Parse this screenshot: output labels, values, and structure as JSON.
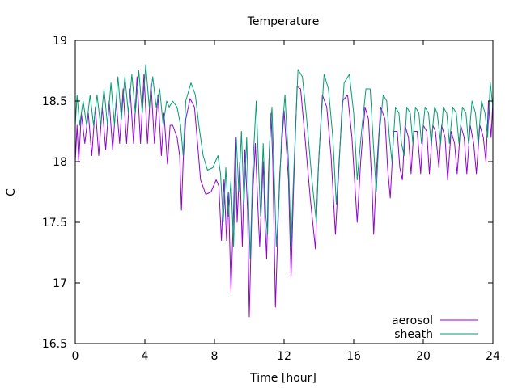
{
  "chart_data": {
    "type": "line",
    "title": "Temperature",
    "xlabel": "Time [hour]",
    "ylabel": "C",
    "xlim": [
      0,
      24
    ],
    "ylim": [
      16.5,
      19
    ],
    "xticks": [
      0,
      4,
      8,
      12,
      16,
      20,
      24
    ],
    "yticks": [
      16.5,
      17,
      17.5,
      18,
      18.5,
      19
    ],
    "grid": false,
    "legend_position": "bottom-right",
    "colors": {
      "aerosol": "#9400d3",
      "sheath": "#009e73"
    },
    "series": [
      {
        "name": "aerosol",
        "points": [
          [
            0.0,
            18.0
          ],
          [
            0.1,
            18.3
          ],
          [
            0.2,
            18.0
          ],
          [
            0.35,
            18.4
          ],
          [
            0.55,
            18.15
          ],
          [
            0.75,
            18.4
          ],
          [
            0.95,
            18.05
          ],
          [
            1.15,
            18.45
          ],
          [
            1.35,
            18.05
          ],
          [
            1.55,
            18.45
          ],
          [
            1.75,
            18.1
          ],
          [
            1.95,
            18.5
          ],
          [
            2.15,
            18.1
          ],
          [
            2.35,
            18.5
          ],
          [
            2.55,
            18.15
          ],
          [
            2.75,
            18.6
          ],
          [
            2.95,
            18.15
          ],
          [
            3.15,
            18.6
          ],
          [
            3.35,
            18.15
          ],
          [
            3.55,
            18.7
          ],
          [
            3.75,
            18.15
          ],
          [
            3.95,
            18.72
          ],
          [
            4.15,
            18.15
          ],
          [
            4.35,
            18.65
          ],
          [
            4.55,
            18.15
          ],
          [
            4.75,
            18.55
          ],
          [
            4.95,
            18.05
          ],
          [
            5.1,
            18.4
          ],
          [
            5.3,
            17.98
          ],
          [
            5.45,
            18.3
          ],
          [
            5.6,
            18.3
          ],
          [
            5.85,
            18.2
          ],
          [
            6.0,
            18.05
          ],
          [
            6.1,
            17.6
          ],
          [
            6.2,
            18.0
          ],
          [
            6.35,
            18.35
          ],
          [
            6.6,
            18.52
          ],
          [
            6.85,
            18.45
          ],
          [
            7.0,
            18.2
          ],
          [
            7.2,
            17.85
          ],
          [
            7.5,
            17.73
          ],
          [
            7.8,
            17.75
          ],
          [
            8.1,
            17.85
          ],
          [
            8.25,
            17.8
          ],
          [
            8.4,
            17.35
          ],
          [
            8.55,
            17.85
          ],
          [
            8.7,
            17.35
          ],
          [
            8.8,
            17.75
          ],
          [
            8.95,
            16.93
          ],
          [
            9.1,
            17.6
          ],
          [
            9.2,
            18.2
          ],
          [
            9.3,
            17.5
          ],
          [
            9.45,
            18.0
          ],
          [
            9.6,
            17.3
          ],
          [
            9.75,
            18.1
          ],
          [
            9.9,
            17.6
          ],
          [
            10.0,
            16.72
          ],
          [
            10.15,
            17.6
          ],
          [
            10.35,
            18.15
          ],
          [
            10.5,
            17.6
          ],
          [
            10.6,
            17.3
          ],
          [
            10.8,
            18.0
          ],
          [
            10.9,
            17.5
          ],
          [
            11.0,
            17.2
          ],
          [
            11.1,
            17.9
          ],
          [
            11.25,
            18.4
          ],
          [
            11.35,
            18.0
          ],
          [
            11.5,
            16.8
          ],
          [
            11.6,
            17.25
          ],
          [
            11.75,
            17.9
          ],
          [
            12.0,
            18.42
          ],
          [
            12.25,
            17.85
          ],
          [
            12.4,
            17.05
          ],
          [
            12.55,
            17.8
          ],
          [
            12.75,
            18.62
          ],
          [
            12.95,
            18.6
          ],
          [
            13.2,
            18.2
          ],
          [
            13.5,
            17.7
          ],
          [
            13.8,
            17.28
          ],
          [
            13.95,
            17.9
          ],
          [
            14.2,
            18.55
          ],
          [
            14.45,
            18.45
          ],
          [
            14.7,
            18.05
          ],
          [
            14.95,
            17.4
          ],
          [
            15.1,
            17.8
          ],
          [
            15.35,
            18.5
          ],
          [
            15.65,
            18.55
          ],
          [
            15.9,
            18.2
          ],
          [
            16.2,
            17.5
          ],
          [
            16.4,
            18.0
          ],
          [
            16.65,
            18.45
          ],
          [
            16.85,
            18.35
          ],
          [
            17.05,
            17.8
          ],
          [
            17.15,
            17.4
          ],
          [
            17.3,
            17.9
          ],
          [
            17.55,
            18.45
          ],
          [
            17.8,
            18.35
          ],
          [
            17.95,
            17.95
          ],
          [
            18.1,
            17.7
          ],
          [
            18.3,
            18.25
          ],
          [
            18.5,
            18.25
          ],
          [
            18.65,
            17.95
          ],
          [
            18.8,
            17.85
          ],
          [
            18.95,
            18.3
          ],
          [
            19.15,
            18.2
          ],
          [
            19.3,
            17.9
          ],
          [
            19.45,
            18.25
          ],
          [
            19.65,
            18.25
          ],
          [
            19.85,
            17.9
          ],
          [
            20.0,
            18.3
          ],
          [
            20.2,
            18.25
          ],
          [
            20.35,
            17.9
          ],
          [
            20.55,
            18.3
          ],
          [
            20.7,
            18.25
          ],
          [
            20.9,
            17.95
          ],
          [
            21.05,
            18.3
          ],
          [
            21.25,
            18.2
          ],
          [
            21.4,
            17.85
          ],
          [
            21.6,
            18.25
          ],
          [
            21.8,
            18.15
          ],
          [
            21.95,
            17.9
          ],
          [
            22.15,
            18.3
          ],
          [
            22.35,
            18.2
          ],
          [
            22.5,
            17.9
          ],
          [
            22.7,
            18.3
          ],
          [
            22.9,
            18.15
          ],
          [
            23.05,
            17.9
          ],
          [
            23.25,
            18.3
          ],
          [
            23.45,
            18.2
          ],
          [
            23.6,
            18.0
          ],
          [
            23.75,
            18.5
          ],
          [
            23.9,
            18.2
          ],
          [
            24.0,
            18.5
          ]
        ]
      },
      {
        "name": "sheath",
        "points": [
          [
            0.0,
            18.3
          ],
          [
            0.1,
            18.55
          ],
          [
            0.25,
            18.3
          ],
          [
            0.45,
            18.5
          ],
          [
            0.65,
            18.3
          ],
          [
            0.85,
            18.55
          ],
          [
            1.05,
            18.3
          ],
          [
            1.25,
            18.55
          ],
          [
            1.45,
            18.3
          ],
          [
            1.65,
            18.6
          ],
          [
            1.85,
            18.3
          ],
          [
            2.05,
            18.65
          ],
          [
            2.25,
            18.3
          ],
          [
            2.45,
            18.7
          ],
          [
            2.65,
            18.35
          ],
          [
            2.85,
            18.7
          ],
          [
            3.05,
            18.4
          ],
          [
            3.25,
            18.72
          ],
          [
            3.45,
            18.4
          ],
          [
            3.65,
            18.75
          ],
          [
            3.85,
            18.4
          ],
          [
            4.05,
            18.8
          ],
          [
            4.25,
            18.45
          ],
          [
            4.45,
            18.7
          ],
          [
            4.65,
            18.45
          ],
          [
            4.85,
            18.6
          ],
          [
            5.05,
            18.3
          ],
          [
            5.25,
            18.5
          ],
          [
            5.4,
            18.45
          ],
          [
            5.6,
            18.5
          ],
          [
            5.85,
            18.45
          ],
          [
            6.05,
            18.3
          ],
          [
            6.2,
            18.05
          ],
          [
            6.35,
            18.5
          ],
          [
            6.65,
            18.65
          ],
          [
            6.9,
            18.55
          ],
          [
            7.1,
            18.3
          ],
          [
            7.35,
            18.05
          ],
          [
            7.6,
            17.93
          ],
          [
            7.9,
            17.95
          ],
          [
            8.2,
            18.05
          ],
          [
            8.35,
            17.9
          ],
          [
            8.5,
            17.5
          ],
          [
            8.65,
            17.95
          ],
          [
            8.8,
            17.55
          ],
          [
            8.95,
            17.85
          ],
          [
            9.1,
            17.3
          ],
          [
            9.25,
            18.2
          ],
          [
            9.4,
            17.75
          ],
          [
            9.55,
            18.25
          ],
          [
            9.7,
            17.65
          ],
          [
            9.85,
            18.2
          ],
          [
            9.95,
            17.7
          ],
          [
            10.05,
            17.2
          ],
          [
            10.2,
            17.95
          ],
          [
            10.4,
            18.5
          ],
          [
            10.55,
            17.9
          ],
          [
            10.65,
            17.55
          ],
          [
            10.8,
            18.15
          ],
          [
            10.95,
            17.55
          ],
          [
            11.05,
            17.4
          ],
          [
            11.15,
            18.1
          ],
          [
            11.3,
            18.45
          ],
          [
            11.45,
            17.8
          ],
          [
            11.55,
            17.3
          ],
          [
            11.7,
            17.65
          ],
          [
            11.85,
            18.2
          ],
          [
            12.05,
            18.55
          ],
          [
            12.25,
            18.0
          ],
          [
            12.4,
            17.3
          ],
          [
            12.55,
            17.9
          ],
          [
            12.8,
            18.76
          ],
          [
            13.05,
            18.7
          ],
          [
            13.3,
            18.35
          ],
          [
            13.6,
            17.85
          ],
          [
            13.85,
            17.5
          ],
          [
            14.0,
            18.05
          ],
          [
            14.3,
            18.72
          ],
          [
            14.55,
            18.6
          ],
          [
            14.8,
            18.2
          ],
          [
            15.0,
            17.65
          ],
          [
            15.2,
            18.1
          ],
          [
            15.45,
            18.65
          ],
          [
            15.75,
            18.72
          ],
          [
            16.0,
            18.4
          ],
          [
            16.2,
            17.85
          ],
          [
            16.45,
            18.25
          ],
          [
            16.7,
            18.6
          ],
          [
            16.95,
            18.6
          ],
          [
            17.15,
            18.1
          ],
          [
            17.3,
            17.75
          ],
          [
            17.45,
            18.2
          ],
          [
            17.7,
            18.55
          ],
          [
            17.9,
            18.5
          ],
          [
            18.05,
            18.2
          ],
          [
            18.2,
            18.0
          ],
          [
            18.4,
            18.45
          ],
          [
            18.6,
            18.4
          ],
          [
            18.75,
            18.15
          ],
          [
            18.9,
            18.05
          ],
          [
            19.05,
            18.45
          ],
          [
            19.25,
            18.4
          ],
          [
            19.4,
            18.15
          ],
          [
            19.55,
            18.45
          ],
          [
            19.75,
            18.4
          ],
          [
            19.9,
            18.15
          ],
          [
            20.1,
            18.45
          ],
          [
            20.3,
            18.4
          ],
          [
            20.45,
            18.15
          ],
          [
            20.65,
            18.45
          ],
          [
            20.8,
            18.4
          ],
          [
            21.0,
            18.15
          ],
          [
            21.15,
            18.45
          ],
          [
            21.35,
            18.4
          ],
          [
            21.5,
            18.15
          ],
          [
            21.7,
            18.45
          ],
          [
            21.9,
            18.4
          ],
          [
            22.05,
            18.15
          ],
          [
            22.25,
            18.45
          ],
          [
            22.45,
            18.4
          ],
          [
            22.6,
            18.15
          ],
          [
            22.8,
            18.5
          ],
          [
            23.0,
            18.4
          ],
          [
            23.15,
            18.15
          ],
          [
            23.35,
            18.5
          ],
          [
            23.55,
            18.4
          ],
          [
            23.7,
            18.2
          ],
          [
            23.85,
            18.65
          ],
          [
            24.0,
            18.45
          ]
        ]
      }
    ]
  }
}
